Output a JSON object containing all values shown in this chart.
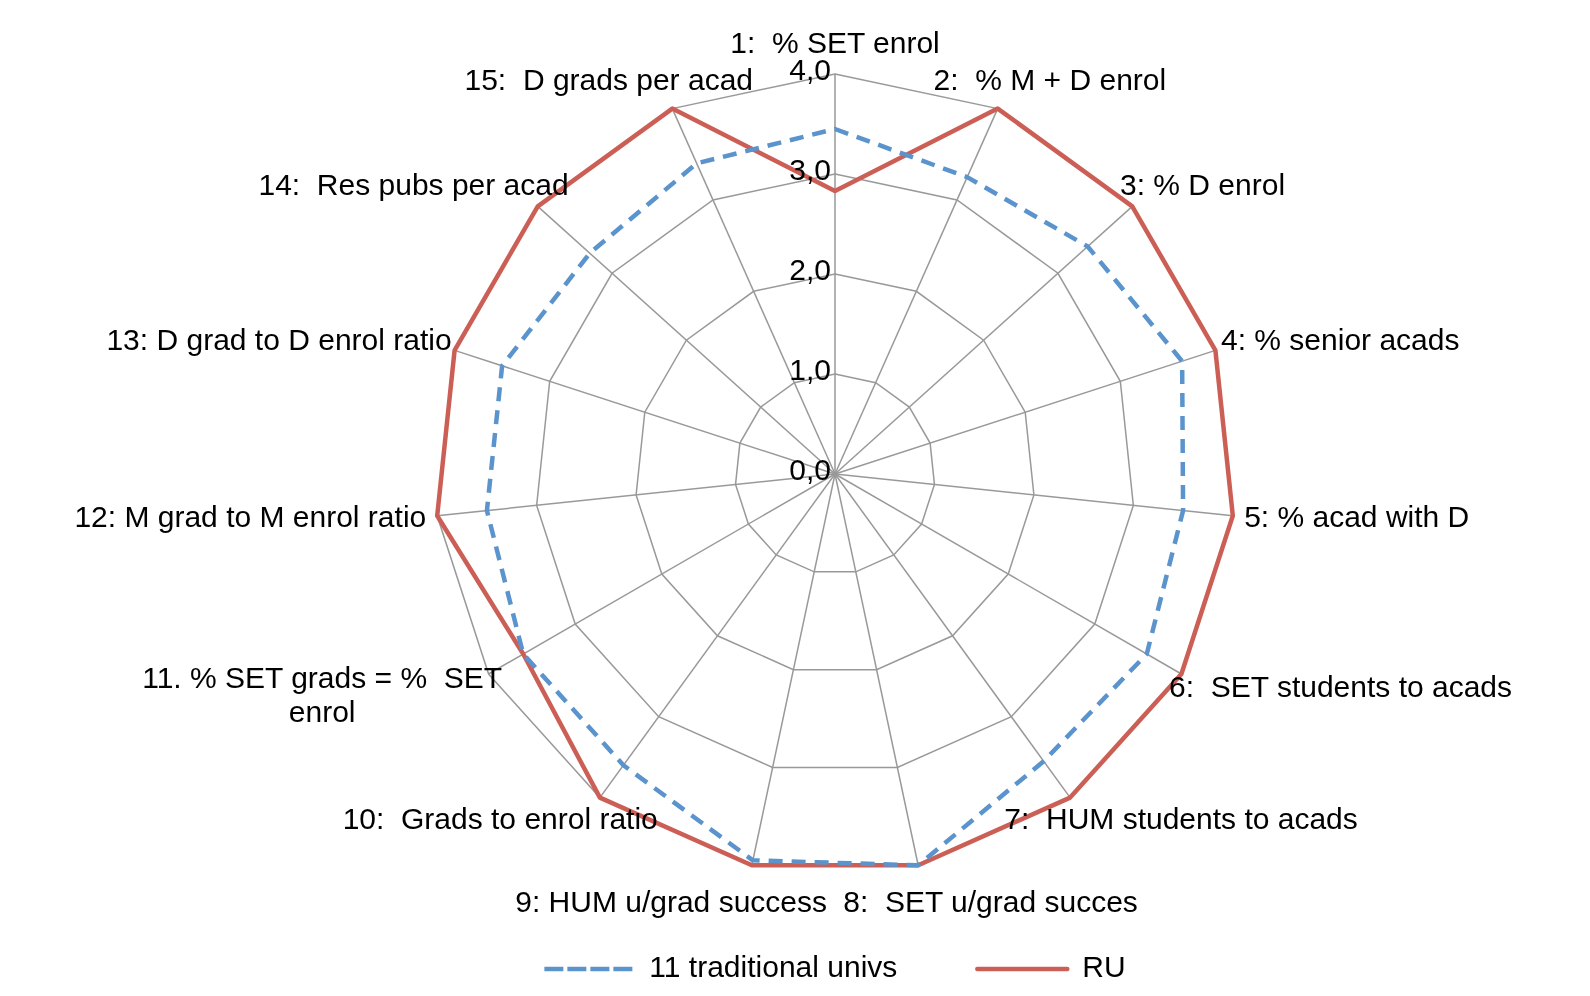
{
  "chart_data": {
    "type": "radar",
    "categories": [
      "1:  % SET enrol",
      "2:  % M + D enrol",
      "3: % D enrol",
      "4: % senior acads",
      "5: % acad with D",
      "6:  SET students to acads",
      "7:  HUM students to acads",
      "8:  SET u/grad succes",
      "9: HUM u/grad success",
      "10:  Grads to enrol ratio",
      "11. % SET grads = %  SET enrol",
      "12: M grad to M enrol ratio",
      "13: D grad to D enrol ratio",
      "14:  Res pubs per acad",
      "15:  D grads per acad"
    ],
    "series": [
      {
        "name": "11 traditional univs",
        "color": "#5b93cd",
        "line_style": "dashed",
        "values": [
          3.45,
          3.25,
          3.4,
          3.65,
          3.5,
          3.6,
          3.55,
          4.0,
          3.95,
          3.6,
          3.6,
          3.5,
          3.5,
          3.3,
          3.4
        ]
      },
      {
        "name": "RU",
        "color": "#cc5f55",
        "line_style": "solid",
        "values": [
          2.83,
          4,
          4,
          4,
          4,
          4,
          4,
          4,
          4,
          4,
          3.6,
          4,
          4,
          4,
          4
        ]
      }
    ],
    "ylim": [
      0,
      4
    ],
    "yticks": [
      {
        "value": 0,
        "label": "0,0"
      },
      {
        "value": 1,
        "label": "1,0"
      },
      {
        "value": 2,
        "label": "2,0"
      },
      {
        "value": 3,
        "label": "3,0"
      },
      {
        "value": 4,
        "label": "4,0"
      }
    ],
    "grid": true,
    "legend": "bottom",
    "marker": "none"
  }
}
